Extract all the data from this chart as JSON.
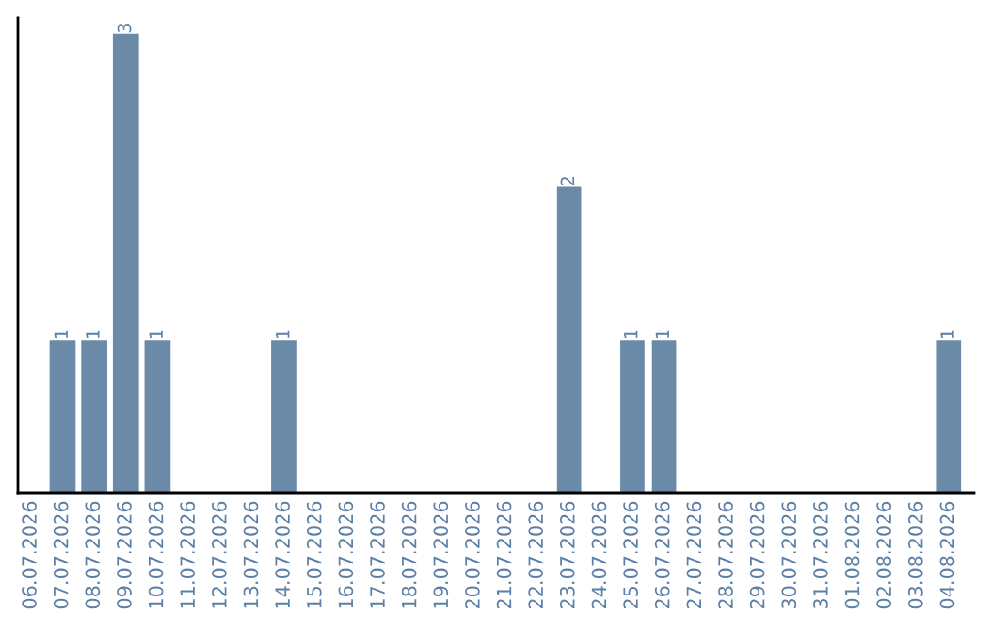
{
  "chart_data": {
    "type": "bar",
    "categories": [
      "06.07.2026",
      "07.07.2026",
      "08.07.2026",
      "09.07.2026",
      "10.07.2026",
      "11.07.2026",
      "12.07.2026",
      "13.07.2026",
      "14.07.2026",
      "15.07.2026",
      "16.07.2026",
      "17.07.2026",
      "18.07.2026",
      "19.07.2026",
      "20.07.2026",
      "21.07.2026",
      "22.07.2026",
      "23.07.2026",
      "24.07.2026",
      "25.07.2026",
      "26.07.2026",
      "27.07.2026",
      "28.07.2026",
      "29.07.2026",
      "30.07.2026",
      "31.07.2026",
      "01.08.2026",
      "02.08.2026",
      "03.08.2026",
      "04.08.2026"
    ],
    "values": [
      0,
      1,
      1,
      3,
      1,
      0,
      0,
      0,
      1,
      0,
      0,
      0,
      0,
      0,
      0,
      0,
      0,
      2,
      0,
      1,
      1,
      0,
      0,
      0,
      0,
      0,
      0,
      0,
      0,
      1
    ],
    "value_labels": [
      null,
      "1",
      "1",
      "3",
      "1",
      null,
      null,
      null,
      "1",
      null,
      null,
      null,
      null,
      null,
      null,
      null,
      null,
      "2",
      null,
      "1",
      "1",
      null,
      null,
      null,
      null,
      null,
      null,
      null,
      null,
      "1"
    ],
    "color": "#6b8aa8",
    "ylim": [
      0,
      3.1
    ],
    "tick_labels": "x",
    "grid": false,
    "legend": false
  }
}
